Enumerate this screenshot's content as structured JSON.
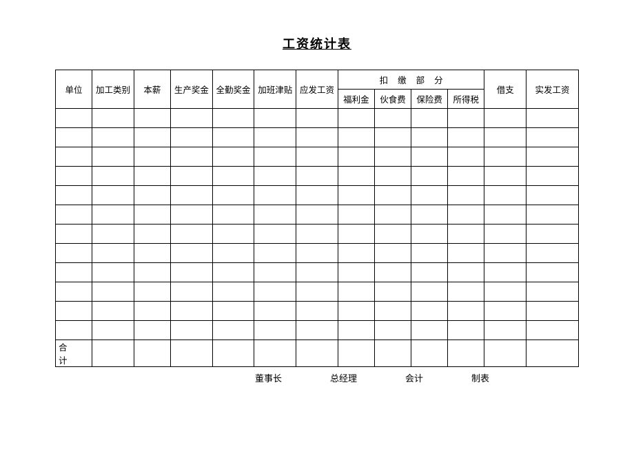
{
  "title": "工资统计表",
  "table": {
    "columns_top": [
      "单位",
      "加工类别",
      "本薪",
      "生产奖金",
      "全勤奖金",
      "加班津贴",
      "应发工资"
    ],
    "deduction_header": "扣缴部分",
    "deduction_sub": [
      "福利金",
      "伙食费",
      "保险费",
      "所得税"
    ],
    "columns_tail": [
      "借支",
      "实发工资"
    ],
    "body_row_count": 12,
    "total_label": "合计",
    "col_widths": [
      "7%",
      "8%",
      "7%",
      "8%",
      "8%",
      "8%",
      "8%",
      "7%",
      "7%",
      "7%",
      "7%",
      "8%",
      "10%"
    ]
  },
  "footer": {
    "signatures": [
      "董事长",
      "总经理",
      "会计",
      "制表"
    ],
    "gaps": [
      70,
      70,
      70
    ]
  },
  "style": {
    "background": "#ffffff",
    "border_color": "#000000",
    "text_color": "#000000"
  }
}
